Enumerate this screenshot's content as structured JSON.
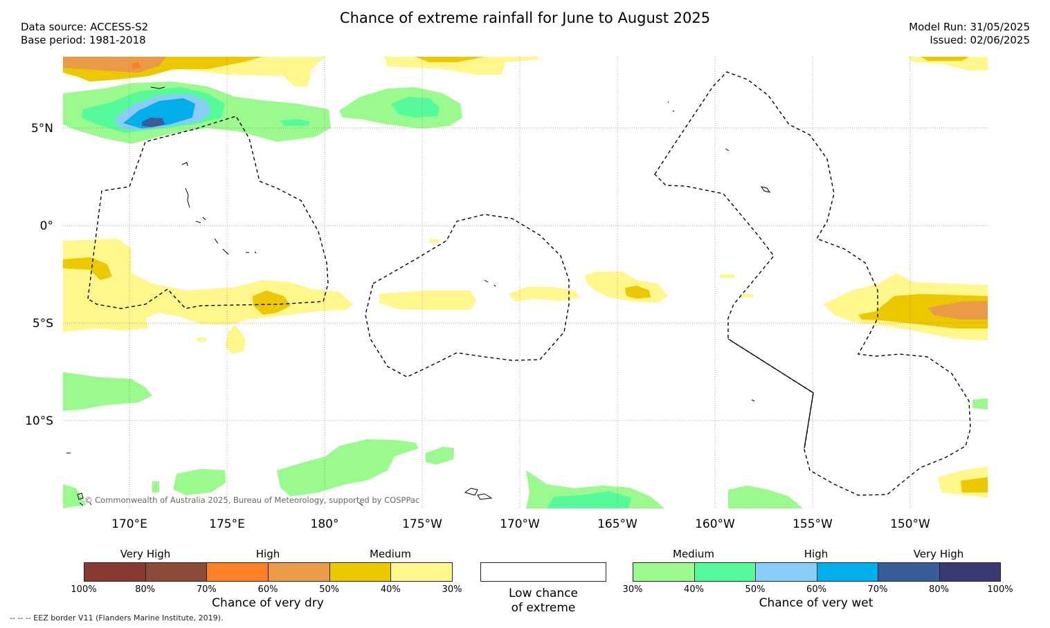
{
  "header": {
    "title": "Chance of extreme rainfall for June to August 2025",
    "data_source": "Data source: ACCESS-S2",
    "base_period": "Base period: 1981-2018",
    "model_run": "Model Run: 31/05/2025",
    "issued": "Issued: 02/06/2025"
  },
  "map": {
    "lon_labels": [
      "170°E",
      "175°E",
      "180°",
      "175°W",
      "170°W",
      "165°W",
      "160°W",
      "155°W",
      "150°W"
    ],
    "lat_labels": [
      "5°N",
      "0°",
      "5°S",
      "10°S"
    ],
    "copyright": "© Commonwealth of Australia 2025, Bureau of Meteorology, supported by COSPPac"
  },
  "legend_dry": {
    "title": "Chance of very dry",
    "categories": [
      "Very High",
      "High",
      "Medium"
    ],
    "ticks": [
      "100%",
      "80%",
      "70%",
      "60%",
      "50%",
      "40%",
      "30%"
    ],
    "colors": [
      "#8b3a32",
      "#8b4c3a",
      "#ff7f27",
      "#eb9b48",
      "#ebc800",
      "#fff68c"
    ]
  },
  "legend_low": {
    "title_line1": "Low chance",
    "title_line2": "of extreme",
    "color": "#ffffff"
  },
  "legend_wet": {
    "title": "Chance of very wet",
    "categories": [
      "Medium",
      "High",
      "Very High"
    ],
    "ticks": [
      "30%",
      "40%",
      "50%",
      "60%",
      "70%",
      "80%",
      "100%"
    ],
    "colors": [
      "#9bfa8e",
      "#55fa9b",
      "#87cdf8",
      "#00aee9",
      "#375e9a",
      "#3a3a73"
    ]
  },
  "footer": {
    "note": "--  --  -- EEZ border V11 (Flanders Marine Institute, 2019)."
  }
}
